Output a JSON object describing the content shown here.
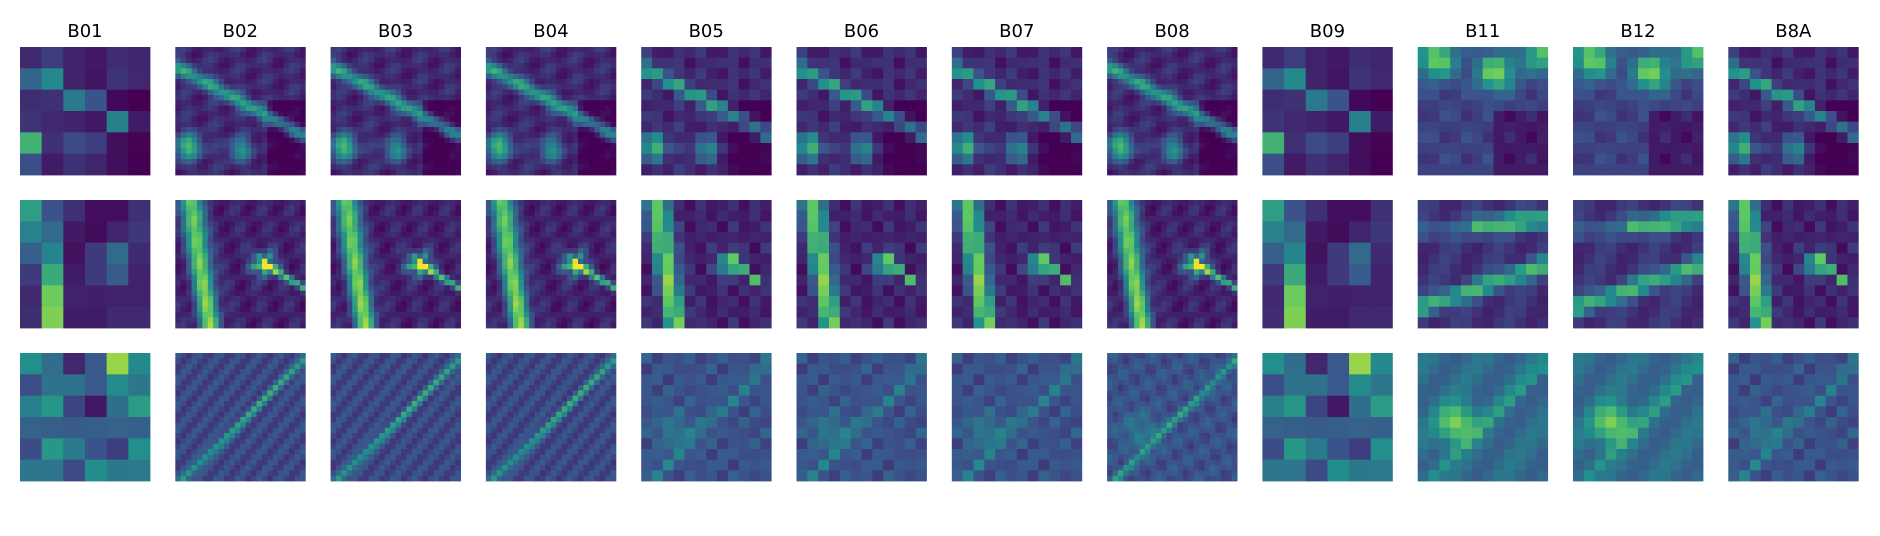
{
  "figure": {
    "background": "#ffffff"
  },
  "chart_data": {
    "type": "heatmap",
    "description_of_layout": "",
    "colormap": "viridis",
    "colormap_stops": [
      "#440154",
      "#3b528b",
      "#21918c",
      "#5ec962",
      "#fde725"
    ],
    "grid": false,
    "bands": [
      "B01",
      "B02",
      "B03",
      "B04",
      "B05",
      "B06",
      "B07",
      "B08",
      "B09",
      "B11",
      "B12",
      "B8A"
    ],
    "band_resolution_cells": [
      6,
      24,
      24,
      24,
      12,
      12,
      12,
      24,
      6,
      12,
      12,
      12
    ],
    "rows": 3
  }
}
